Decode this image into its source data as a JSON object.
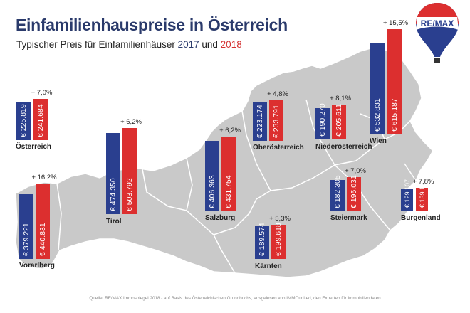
{
  "header": {
    "title": "Einfamilienhauspreise in Österreich",
    "subtitle_prefix": "Typischer Preis für Einfamilienhäuser ",
    "year_2017": "2017",
    "subtitle_mid": " und ",
    "year_2018": "2018"
  },
  "logo": {
    "text": "RE/MAX"
  },
  "source": "Quelle: RE/MAX Immospiegel 2018 - auf Basis des Österreichischen Grundbuchs, ausgelesen von IMMOunited, den Experten für Immobiliendaten",
  "colors": {
    "2017": "#2a3f8f",
    "2018": "#dc2f2f",
    "map": "#c9c9c9",
    "title": "#2a3a6b"
  },
  "chart_data": {
    "type": "bar",
    "title": "Einfamilienhauspreise in Österreich",
    "subtitle": "Typischer Preis für Einfamilienhäuser 2017 und 2018",
    "series": [
      {
        "name": "2017"
      },
      {
        "name": "2018"
      }
    ],
    "regions": [
      {
        "name": "Österreich",
        "v2017": 225819,
        "v2018": 241684,
        "label2017": "€ 225.819",
        "label2018": "€ 241.684",
        "change": "+ 7,0%"
      },
      {
        "name": "Vorarlberg",
        "v2017": 379221,
        "v2018": 440831,
        "label2017": "€ 379.221",
        "label2018": "€ 440.831",
        "change": "+ 16,2%"
      },
      {
        "name": "Tirol",
        "v2017": 474350,
        "v2018": 503792,
        "label2017": "€ 474.350",
        "label2018": "€ 503.792",
        "change": "+ 6,2%"
      },
      {
        "name": "Salzburg",
        "v2017": 406363,
        "v2018": 431754,
        "label2017": "€ 406.363",
        "label2018": "€ 431.754",
        "change": "+ 6,2%"
      },
      {
        "name": "Oberösterreich",
        "v2017": 223174,
        "v2018": 233791,
        "label2017": "€ 223.174",
        "label2018": "€ 233.791",
        "change": "+ 4,8%"
      },
      {
        "name": "Niederösterreich",
        "v2017": 190270,
        "v2018": 205611,
        "label2017": "€ 190.270",
        "label2018": "€ 205.611",
        "change": "+ 8,1%"
      },
      {
        "name": "Wien",
        "v2017": 532831,
        "v2018": 615187,
        "label2017": "€ 532.831",
        "label2018": "€ 615.187",
        "change": "+ 15,5%"
      },
      {
        "name": "Steiermark",
        "v2017": 182305,
        "v2018": 195031,
        "label2017": "€ 182.305",
        "label2018": "€ 195.031",
        "change": "+ 7,0%"
      },
      {
        "name": "Burgenland",
        "v2017": 129107,
        "v2018": 139165,
        "label2017": "€ 129.107",
        "label2018": "€ 139.165",
        "change": "+ 7,8%"
      },
      {
        "name": "Kärnten",
        "v2017": 189574,
        "v2018": 199618,
        "label2017": "€ 189.574",
        "label2018": "€ 199.618",
        "change": "+ 5,3%"
      }
    ]
  }
}
